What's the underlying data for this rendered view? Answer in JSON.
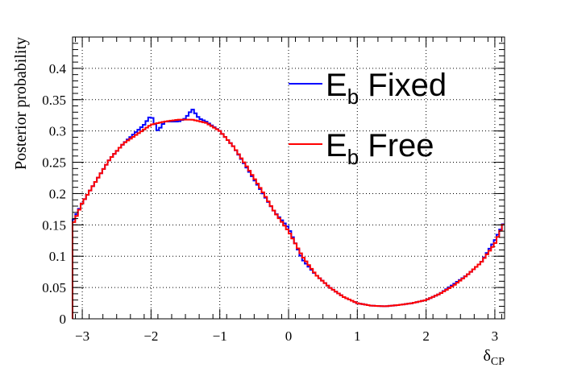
{
  "chart_data": {
    "type": "line",
    "title": "",
    "xlabel": "δ",
    "xlabel_sub": "CP",
    "ylabel": "Posterior probability",
    "xlim": [
      -3.1416,
      3.1416
    ],
    "ylim": [
      0,
      0.45
    ],
    "grid": true,
    "x_ticks": [
      -3,
      -2,
      -1,
      0,
      1,
      2,
      3
    ],
    "x_tick_labels": [
      "−3",
      "−2",
      "−1",
      "0",
      "1",
      "2",
      "3"
    ],
    "y_ticks": [
      0,
      0.05,
      0.1,
      0.15,
      0.2,
      0.25,
      0.3,
      0.35,
      0.4
    ],
    "y_tick_labels": [
      "0",
      "0.05",
      "0.1",
      "0.15",
      "0.2",
      "0.25",
      "0.3",
      "0.35",
      "0.4"
    ],
    "legend_placement": "top-right",
    "series": [
      {
        "name": "E_b Fixed",
        "label_main": "E",
        "label_sub": "b",
        "label_rest": " Fixed",
        "color": "#0000ff",
        "x": [
          -3.14,
          -3.0,
          -2.8,
          -2.6,
          -2.4,
          -2.2,
          -2.1,
          -2.0,
          -1.9,
          -1.8,
          -1.6,
          -1.5,
          -1.4,
          -1.3,
          -1.2,
          -1.0,
          -0.8,
          -0.6,
          -0.4,
          -0.2,
          0.0,
          0.2,
          0.4,
          0.6,
          0.8,
          1.0,
          1.2,
          1.4,
          1.6,
          1.8,
          2.0,
          2.2,
          2.4,
          2.6,
          2.8,
          3.0,
          3.14
        ],
        "y": [
          0.155,
          0.185,
          0.22,
          0.255,
          0.28,
          0.3,
          0.31,
          0.325,
          0.3,
          0.315,
          0.315,
          0.32,
          0.335,
          0.32,
          0.315,
          0.3,
          0.275,
          0.24,
          0.205,
          0.17,
          0.145,
          0.095,
          0.07,
          0.05,
          0.035,
          0.025,
          0.021,
          0.02,
          0.022,
          0.025,
          0.03,
          0.04,
          0.055,
          0.07,
          0.09,
          0.125,
          0.155
        ]
      },
      {
        "name": "E_b Free",
        "label_main": "E",
        "label_sub": "b",
        "label_rest": " Free",
        "color": "#ff0000",
        "x": [
          -3.14,
          -3.0,
          -2.8,
          -2.6,
          -2.4,
          -2.2,
          -2.0,
          -1.8,
          -1.6,
          -1.4,
          -1.2,
          -1.0,
          -0.8,
          -0.6,
          -0.4,
          -0.2,
          0.0,
          0.2,
          0.4,
          0.6,
          0.8,
          1.0,
          1.2,
          1.4,
          1.6,
          1.8,
          2.0,
          2.2,
          2.4,
          2.6,
          2.8,
          3.0,
          3.14
        ],
        "y": [
          0.15,
          0.185,
          0.22,
          0.255,
          0.28,
          0.295,
          0.31,
          0.315,
          0.318,
          0.318,
          0.313,
          0.3,
          0.275,
          0.242,
          0.207,
          0.17,
          0.14,
          0.1,
          0.07,
          0.05,
          0.035,
          0.025,
          0.021,
          0.02,
          0.022,
          0.025,
          0.03,
          0.04,
          0.053,
          0.07,
          0.09,
          0.12,
          0.155
        ]
      }
    ]
  }
}
